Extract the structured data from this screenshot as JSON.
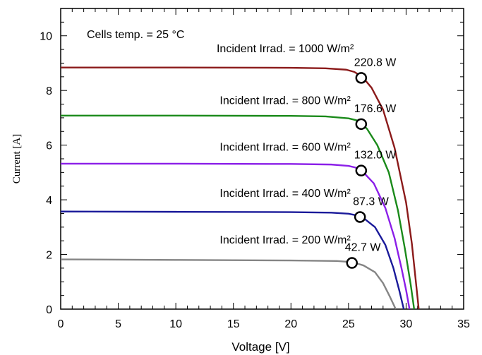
{
  "chart_data": {
    "type": "line",
    "title": "",
    "xlabel": "Voltage [V]",
    "ylabel": "Current [A]",
    "xlim": [
      0,
      35
    ],
    "ylim": [
      0,
      11
    ],
    "xticks": [
      0,
      5,
      10,
      15,
      20,
      25,
      30,
      35
    ],
    "yticks": [
      0,
      2,
      4,
      6,
      8,
      10
    ],
    "grid": false,
    "legend": "none",
    "temperature_note": "Cells temp. = 25 °C",
    "series": [
      {
        "name": "Incident Irrad. = 1000 W/m²",
        "color": "#8b1a1a",
        "label_at": [
          19.5,
          9.4
        ],
        "points": [
          [
            0,
            8.84
          ],
          [
            10,
            8.84
          ],
          [
            20,
            8.83
          ],
          [
            23,
            8.81
          ],
          [
            24.8,
            8.76
          ],
          [
            25.5,
            8.68
          ],
          [
            26.2,
            8.5
          ],
          [
            27,
            8.1
          ],
          [
            28,
            7.3
          ],
          [
            29,
            5.9
          ],
          [
            30,
            3.9
          ],
          [
            30.5,
            2.4
          ],
          [
            30.8,
            1.2
          ],
          [
            31.1,
            0
          ]
        ],
        "mpp": {
          "v": 26.1,
          "i": 8.46,
          "power_label": "220.8 W"
        }
      },
      {
        "name": "Incident Irrad. = 800 W/m²",
        "color": "#1a8a1a",
        "label_at": [
          19.5,
          7.5
        ],
        "points": [
          [
            0,
            7.08
          ],
          [
            10,
            7.08
          ],
          [
            20,
            7.07
          ],
          [
            23,
            7.05
          ],
          [
            25,
            6.98
          ],
          [
            25.8,
            6.9
          ],
          [
            26.6,
            6.6
          ],
          [
            27.5,
            6.0
          ],
          [
            28.5,
            5.0
          ],
          [
            29.3,
            3.6
          ],
          [
            29.9,
            2.2
          ],
          [
            30.4,
            0.9
          ],
          [
            30.7,
            0
          ]
        ],
        "mpp": {
          "v": 26.1,
          "i": 6.77,
          "power_label": "176.6 W"
        }
      },
      {
        "name": "Incident Irrad. = 600 W/m²",
        "color": "#8b1fe8",
        "label_at": [
          19.5,
          5.8
        ],
        "points": [
          [
            0,
            5.32
          ],
          [
            10,
            5.32
          ],
          [
            20,
            5.31
          ],
          [
            23.5,
            5.29
          ],
          [
            25,
            5.24
          ],
          [
            25.6,
            5.18
          ],
          [
            26.3,
            5.0
          ],
          [
            27.2,
            4.6
          ],
          [
            28.2,
            3.7
          ],
          [
            29.0,
            2.6
          ],
          [
            29.6,
            1.5
          ],
          [
            30.0,
            0.7
          ],
          [
            30.3,
            0
          ]
        ],
        "mpp": {
          "v": 26.1,
          "i": 5.07,
          "power_label": "132.0 W"
        }
      },
      {
        "name": "Incident Irrad. = 400 W/m²",
        "color": "#1a1a9a",
        "label_at": [
          19.5,
          4.1
        ],
        "points": [
          [
            0,
            3.57
          ],
          [
            10,
            3.56
          ],
          [
            20,
            3.55
          ],
          [
            23.5,
            3.53
          ],
          [
            25,
            3.49
          ],
          [
            25.6,
            3.44
          ],
          [
            26.4,
            3.3
          ],
          [
            27.3,
            3.0
          ],
          [
            28.2,
            2.35
          ],
          [
            28.9,
            1.5
          ],
          [
            29.4,
            0.7
          ],
          [
            29.8,
            0
          ]
        ],
        "mpp": {
          "v": 26.0,
          "i": 3.37,
          "power_label": "87.3 W"
        }
      },
      {
        "name": "Incident Irrad. = 200 W/m²",
        "color": "#858585",
        "label_at": [
          19.5,
          2.4
        ],
        "points": [
          [
            0,
            1.82
          ],
          [
            10,
            1.8
          ],
          [
            20,
            1.78
          ],
          [
            24,
            1.76
          ],
          [
            25.3,
            1.72
          ],
          [
            26.3,
            1.6
          ],
          [
            27.3,
            1.35
          ],
          [
            28.0,
            0.95
          ],
          [
            28.6,
            0.45
          ],
          [
            29.1,
            0
          ]
        ],
        "mpp": {
          "v": 25.3,
          "i": 1.69,
          "power_label": "42.7 W"
        }
      }
    ]
  }
}
